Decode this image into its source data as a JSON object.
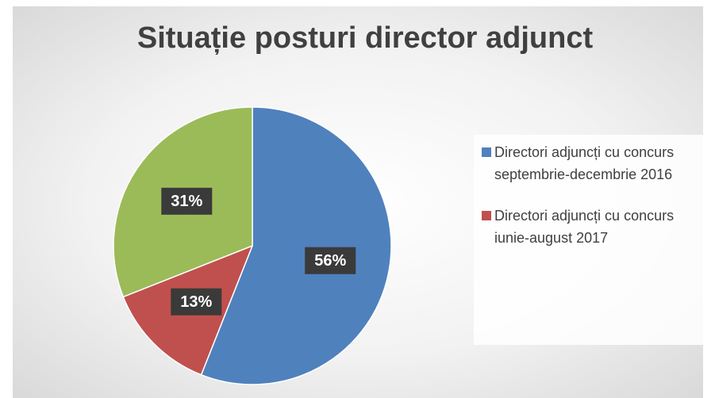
{
  "chart_data": {
    "type": "pie",
    "title": "Situație posturi director adjunct",
    "categories": [
      "Directori adjuncți cu concurs septembrie-decembrie 2016",
      "Directori adjuncți cu concurs iunie-august 2017",
      null
    ],
    "values": [
      56,
      13,
      31
    ],
    "value_labels": [
      "56%",
      "13%",
      "31%"
    ],
    "colors": [
      "#4f81bd",
      "#c0504d",
      "#9bbb59"
    ],
    "legend": "right"
  }
}
